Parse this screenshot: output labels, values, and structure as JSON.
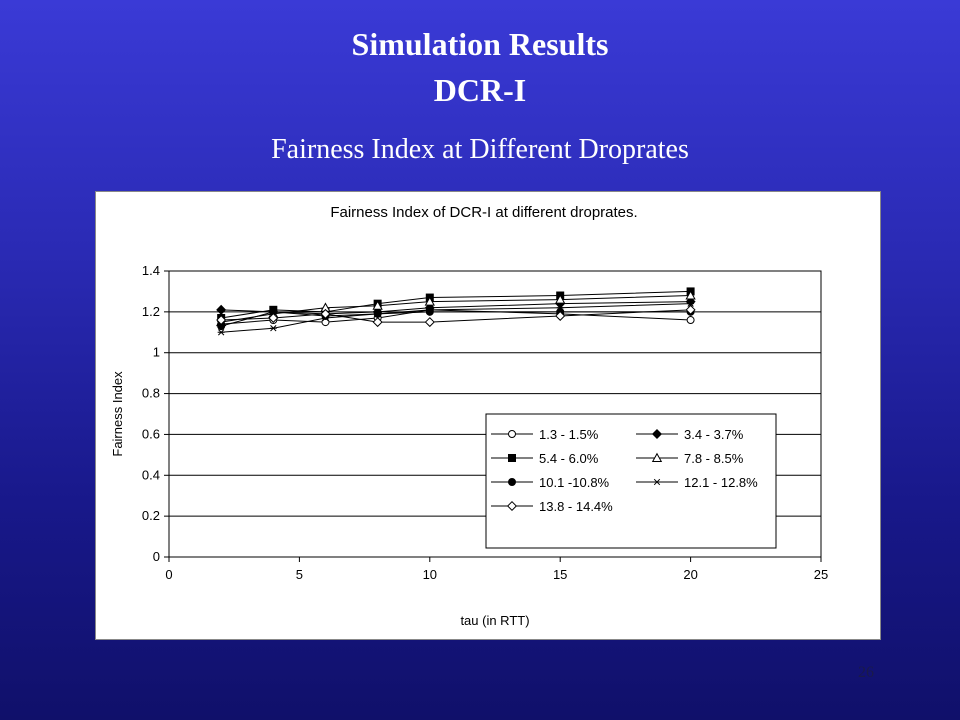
{
  "slide": {
    "title_line1": "Simulation Results",
    "title_line2": "DCR-I",
    "subtitle": "Fairness Index at Different Droprates",
    "page_number": "26"
  },
  "chart_data": {
    "type": "line",
    "title": "Fairness Index of DCR-I at different droprates.",
    "xlabel": "tau (in RTT)",
    "ylabel": "Fairness Index",
    "xlim": [
      0,
      25
    ],
    "ylim": [
      0,
      1.4
    ],
    "xticks": [
      0,
      5,
      10,
      15,
      20,
      25
    ],
    "yticks": [
      0,
      0.2,
      0.4,
      0.6,
      0.8,
      1,
      1.2,
      1.4
    ],
    "ytick_labels": [
      "0",
      "0.2",
      "0.4",
      "0.6",
      "0.8",
      "1",
      "1.2",
      "1.4"
    ],
    "grid": "horizontal",
    "legend_position": "bottom-right",
    "x": [
      2,
      4,
      6,
      8,
      10,
      15,
      20
    ],
    "series": [
      {
        "name": "1.3 - 1.5%",
        "marker": "circle-open",
        "values": [
          1.14,
          1.16,
          1.15,
          1.17,
          1.21,
          1.19,
          1.16
        ]
      },
      {
        "name": "3.4 - 3.7%",
        "marker": "diamond-filled",
        "values": [
          1.21,
          1.2,
          1.19,
          1.2,
          1.22,
          1.24,
          1.25
        ]
      },
      {
        "name": "5.4 - 6.0%",
        "marker": "square-filled",
        "values": [
          1.17,
          1.21,
          1.2,
          1.24,
          1.27,
          1.28,
          1.3
        ]
      },
      {
        "name": "7.8 - 8.5%",
        "marker": "triangle-open",
        "values": [
          1.15,
          1.19,
          1.22,
          1.23,
          1.25,
          1.26,
          1.28
        ]
      },
      {
        "name": "10.1 -10.8%",
        "marker": "circle-filled",
        "values": [
          1.13,
          1.2,
          1.18,
          1.19,
          1.2,
          1.2,
          1.2
        ]
      },
      {
        "name": "12.1 - 12.8%",
        "marker": "asterisk",
        "values": [
          1.1,
          1.12,
          1.17,
          1.19,
          1.21,
          1.22,
          1.24
        ]
      },
      {
        "name": "13.8 - 14.4%",
        "marker": "diamond-open",
        "values": [
          1.16,
          1.17,
          1.19,
          1.15,
          1.15,
          1.18,
          1.21
        ]
      }
    ]
  }
}
